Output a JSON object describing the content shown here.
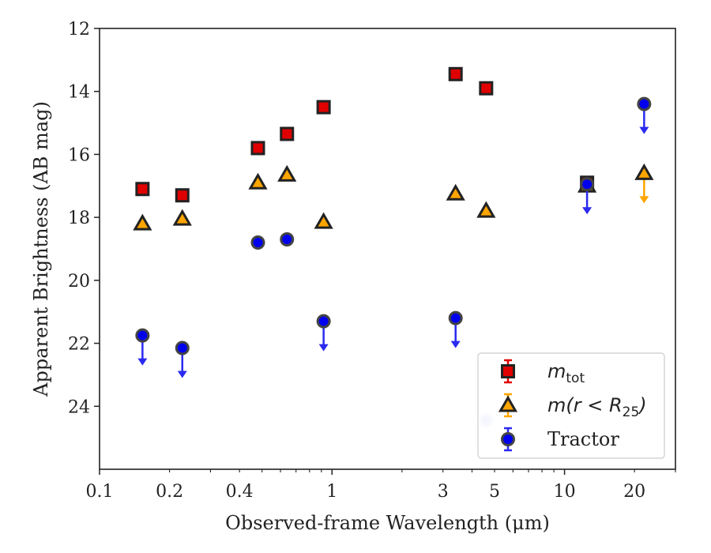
{
  "chart_data": {
    "type": "scatter",
    "xlabel": "Observed-frame Wavelength (μm)",
    "ylabel": "Apparent Brightness (AB mag)",
    "xscale": "log",
    "yinverted": true,
    "xlim": [
      0.1,
      30
    ],
    "ylim": [
      12,
      26
    ],
    "x_tick_values": [
      0.1,
      0.2,
      0.4,
      1,
      3,
      5,
      10,
      20
    ],
    "x_tick_labels": [
      "0.1",
      "0.2",
      "0.4",
      "1",
      "3",
      "5",
      "10",
      "20"
    ],
    "y_tick_values": [
      12,
      14,
      16,
      18,
      20,
      22,
      24
    ],
    "y_tick_labels": [
      "12",
      "14",
      "16",
      "18",
      "20",
      "22",
      "24"
    ],
    "legend_position": "lower-right",
    "grid": false,
    "series": [
      {
        "name": "m_tot",
        "legend_label": "m",
        "legend_sub": "tot",
        "marker": "square",
        "color": "#e00000",
        "edge": "#222222",
        "points": [
          {
            "x": 0.153,
            "y": 17.1
          },
          {
            "x": 0.227,
            "y": 17.3
          },
          {
            "x": 0.48,
            "y": 15.8
          },
          {
            "x": 0.64,
            "y": 15.35
          },
          {
            "x": 0.92,
            "y": 14.5
          },
          {
            "x": 3.4,
            "y": 13.45
          },
          {
            "x": 4.6,
            "y": 13.9
          },
          {
            "x": 12.5,
            "y": 16.9
          }
        ]
      },
      {
        "name": "m(r < R_25)",
        "legend_label": "m(r < R",
        "legend_sub": "25",
        "legend_suffix": ")",
        "marker": "triangle",
        "color": "#ffa500",
        "edge": "#222222",
        "points": [
          {
            "x": 0.153,
            "y": 18.2
          },
          {
            "x": 0.227,
            "y": 18.05
          },
          {
            "x": 0.48,
            "y": 16.9
          },
          {
            "x": 0.64,
            "y": 16.65
          },
          {
            "x": 0.92,
            "y": 18.15
          },
          {
            "x": 3.4,
            "y": 17.25
          },
          {
            "x": 4.6,
            "y": 17.8
          },
          {
            "x": 12.5,
            "y": 17.0
          },
          {
            "x": 22.0,
            "y": 16.6,
            "upper_limit": true
          }
        ]
      },
      {
        "name": "Tractor",
        "legend_label": "Tractor",
        "marker": "circle",
        "color": "#0000ee",
        "edge": "#444444",
        "points": [
          {
            "x": 0.153,
            "y": 21.75,
            "upper_limit": true
          },
          {
            "x": 0.227,
            "y": 22.15,
            "upper_limit": true
          },
          {
            "x": 0.48,
            "y": 18.8
          },
          {
            "x": 0.64,
            "y": 18.7
          },
          {
            "x": 0.92,
            "y": 21.3,
            "upper_limit": true
          },
          {
            "x": 3.4,
            "y": 21.2,
            "upper_limit": true
          },
          {
            "x": 4.6,
            "y": 24.45,
            "faint": true
          },
          {
            "x": 12.5,
            "y": 16.95,
            "upper_limit": true
          },
          {
            "x": 22.0,
            "y": 14.4,
            "upper_limit": true
          }
        ]
      }
    ]
  }
}
